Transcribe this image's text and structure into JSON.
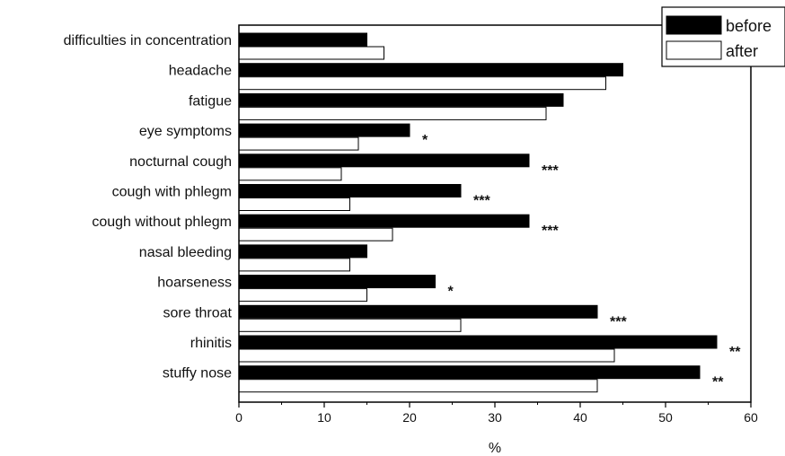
{
  "chart_data": {
    "type": "bar",
    "orientation": "horizontal",
    "categories": [
      "difficulties in concentration",
      "headache",
      "fatigue",
      "eye symptoms",
      "nocturnal cough",
      "cough with phlegm",
      "cough without phlegm",
      "nasal bleeding",
      "hoarseness",
      "sore throat",
      "rhinitis",
      "stuffy nose"
    ],
    "series": [
      {
        "name": "before",
        "color": "#000000",
        "values": [
          15,
          45,
          38,
          20,
          34,
          26,
          34,
          15,
          23,
          42,
          56,
          54
        ]
      },
      {
        "name": "after",
        "color": "#ffffff",
        "values": [
          17,
          43,
          36,
          14,
          12,
          13,
          18,
          13,
          15,
          26,
          44,
          42
        ]
      }
    ],
    "significance": [
      "",
      "",
      "",
      "*",
      "***",
      "***",
      "***",
      "",
      "*",
      "***",
      "**",
      "**"
    ],
    "xlabel": "%",
    "xlim": [
      0,
      60
    ],
    "xticks": [
      "0",
      "10",
      "20",
      "30",
      "40",
      "50",
      "60"
    ],
    "legend": {
      "position": "top-right",
      "entries": [
        "before",
        "after"
      ]
    },
    "grid": false
  }
}
